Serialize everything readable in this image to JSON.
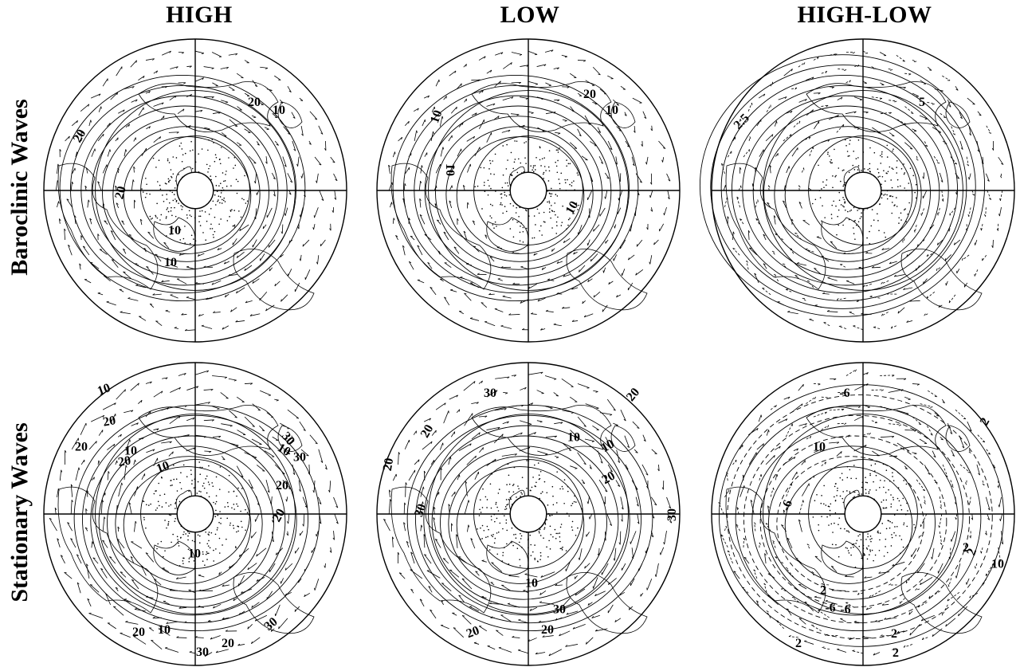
{
  "column_titles": [
    "HIGH",
    "LOW",
    "HIGH-LOW"
  ],
  "row_titles": [
    "Baroclinic Waves",
    "Stationary Waves"
  ],
  "panels": [
    {
      "id": "baroclinic-high",
      "labels": [
        "20",
        "10",
        "20",
        "20",
        "10",
        "10"
      ]
    },
    {
      "id": "baroclinic-low",
      "labels": [
        "20",
        "10",
        "10",
        "10",
        "10"
      ]
    },
    {
      "id": "baroclinic-high-low",
      "labels": [
        "2.5",
        "5"
      ]
    },
    {
      "id": "stationary-high",
      "labels": [
        "10",
        "20",
        "20",
        "10",
        "20",
        "10",
        "30",
        "30",
        "20",
        "10",
        "20",
        "10",
        "10",
        "20",
        "30",
        "30",
        "20"
      ]
    },
    {
      "id": "stationary-low",
      "labels": [
        "30",
        "20",
        "20",
        "10",
        "10",
        "20",
        "20",
        "30",
        "30",
        "10",
        "20",
        "30",
        "20"
      ]
    },
    {
      "id": "stationary-high-low",
      "labels": [
        "-6",
        "10",
        "2",
        "-6",
        "2",
        "2",
        "10",
        "2",
        "-6",
        "-6",
        "2",
        "2",
        "2"
      ]
    }
  ]
}
